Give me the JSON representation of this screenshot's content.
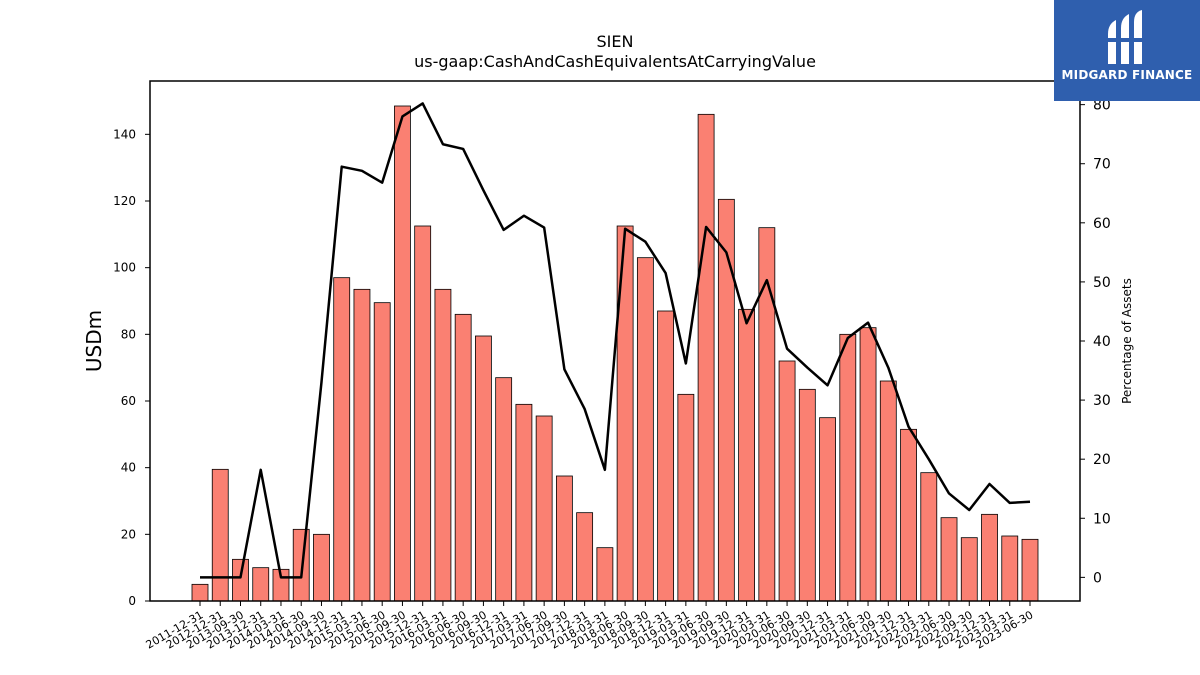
{
  "logo": {
    "text": "MIDGARD FINANCE",
    "icon": "midgard-logo-icon",
    "color": "#2f5fae"
  },
  "chart_data": {
    "type": "bar",
    "title": "SIEN",
    "subtitle": "us-gaap:CashAndCashEquivalentsAtCarryingValue",
    "ylabel": "USDm",
    "y2label": "Percentage of Assets",
    "ylim": [
      0,
      156
    ],
    "y2lim": [
      -4,
      84
    ],
    "yticks": [
      0,
      20,
      40,
      60,
      80,
      100,
      120,
      140
    ],
    "y2ticks": [
      0,
      10,
      20,
      30,
      40,
      50,
      60,
      70,
      80
    ],
    "bar_color": "#fa8072",
    "line_color": "#000000",
    "categories": [
      "2011-12-31",
      "2012-12-31",
      "2013-09-30",
      "2013-12-31",
      "2014-03-31",
      "2014-06-30",
      "2014-09-30",
      "2014-12-31",
      "2015-03-31",
      "2015-06-30",
      "2015-09-30",
      "2015-12-31",
      "2016-03-31",
      "2016-06-30",
      "2016-09-30",
      "2016-12-31",
      "2017-03-31",
      "2017-06-30",
      "2017-09-30",
      "2017-12-31",
      "2018-03-31",
      "2018-06-30",
      "2018-09-30",
      "2018-12-31",
      "2019-03-31",
      "2019-06-30",
      "2019-09-30",
      "2019-12-31",
      "2020-03-31",
      "2020-06-30",
      "2020-09-30",
      "2020-12-31",
      "2021-03-31",
      "2021-06-30",
      "2021-09-30",
      "2021-12-31",
      "2022-03-31",
      "2022-06-30",
      "2022-09-30",
      "2022-12-31",
      "2023-03-31",
      "2023-06-30"
    ],
    "series": [
      {
        "type": "bar",
        "axis": "left",
        "values": [
          5,
          39.5,
          12.5,
          10,
          9.5,
          21.5,
          20,
          97,
          93.5,
          89.5,
          148.5,
          112.5,
          93.5,
          86,
          79.5,
          67,
          59,
          55.5,
          37.5,
          26.5,
          16,
          112.5,
          103,
          87,
          62,
          146,
          120.5,
          87.5,
          112,
          72,
          63.5,
          55,
          80,
          82,
          66,
          51.5,
          38.5,
          25,
          19,
          26,
          19.5,
          18.5
        ]
      },
      {
        "type": "line",
        "axis": "right",
        "values": [
          0,
          0,
          0,
          18.2,
          0,
          0,
          33,
          69.5,
          68.8,
          66.8,
          78,
          80.2,
          73.3,
          72.5,
          65.5,
          58.8,
          61.2,
          59.2,
          35.2,
          28.5,
          18.2,
          59,
          56.8,
          51.5,
          36.2,
          59.3,
          55,
          43,
          50.3,
          38.7,
          35.5,
          32.5,
          40.5,
          43.1,
          35.5,
          25.5,
          20,
          14.2,
          11.4,
          15.8,
          12.6,
          12.8
        ]
      }
    ]
  }
}
